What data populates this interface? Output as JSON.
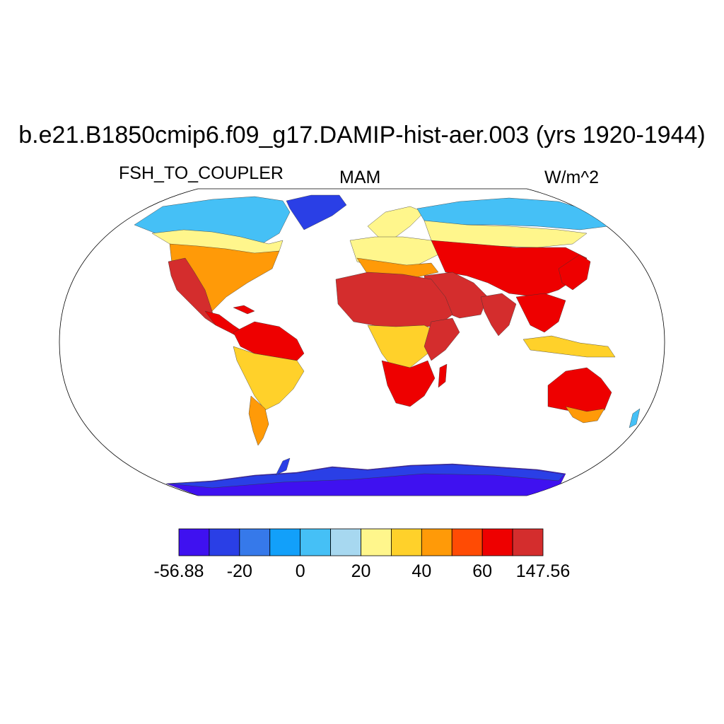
{
  "title": "b.e21.B1850cmip6.f09_g17.DAMIP-hist-aer.003 (yrs 1920-1944)",
  "variable": "FSH_TO_COUPLER",
  "season": "MAM",
  "units": "W/m^2",
  "colorbar": {
    "colors": [
      "#3f11f0",
      "#2a3fe6",
      "#3679ea",
      "#12a0fa",
      "#45c0f6",
      "#a7d8f0",
      "#fff68c",
      "#ffd12a",
      "#ff9a08",
      "#ff4b04",
      "#ee0000",
      "#d42d2d"
    ],
    "boundaries": [
      -56.88,
      -30,
      -20,
      -10,
      0,
      10,
      20,
      30,
      40,
      50,
      60,
      70,
      147.56
    ],
    "tick_labels": [
      "-56.88",
      "-20",
      "0",
      "20",
      "40",
      "60",
      "147.56"
    ]
  },
  "map": {
    "projection": "Robinson",
    "ocean_color": "#ffffff",
    "colors": {
      "greenland": "#2a3fe6",
      "antarctica": "#3f11f0",
      "arctic": "#45c0f6",
      "boreal": "#fff68c",
      "temperate": "#ff9a08",
      "hot": "#ee0000",
      "desert": "#d42d2d",
      "tropical": "#ffd12a"
    }
  }
}
